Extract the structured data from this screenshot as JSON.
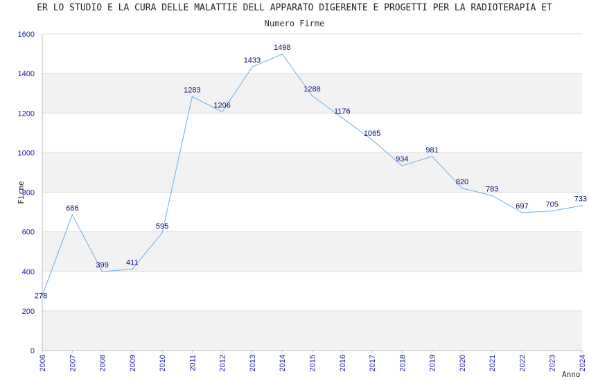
{
  "chart_data": {
    "type": "line",
    "title": "ER LO STUDIO E LA CURA DELLE MALATTIE DELL APPARATO DIGERENTE E PROGETTI PER LA RADIOTERAPIA ET",
    "subtitle": "Numero Firme",
    "xlabel": "Anno",
    "ylabel": "Firme",
    "ylim": [
      0,
      1600
    ],
    "yticks": [
      0,
      200,
      400,
      600,
      800,
      1000,
      1200,
      1400,
      1600
    ],
    "grid": true,
    "x": [
      "2006",
      "2007",
      "2008",
      "2009",
      "2010",
      "2011",
      "2012",
      "2013",
      "2014",
      "2015",
      "2016",
      "2017",
      "2018",
      "2019",
      "2020",
      "2021",
      "2022",
      "2023",
      "2024"
    ],
    "series": [
      {
        "name": "Numero Firme",
        "values": [
          278,
          686,
          399,
          411,
          595,
          1283,
          1206,
          1433,
          1498,
          1288,
          1176,
          1065,
          934,
          981,
          820,
          783,
          697,
          705,
          733
        ]
      }
    ],
    "colors": {
      "line": "#6aaee8",
      "band": "#f2f2f2",
      "grid": "#dddddd",
      "tick": "#1a1aa6",
      "label": "#0b0b6e"
    }
  }
}
